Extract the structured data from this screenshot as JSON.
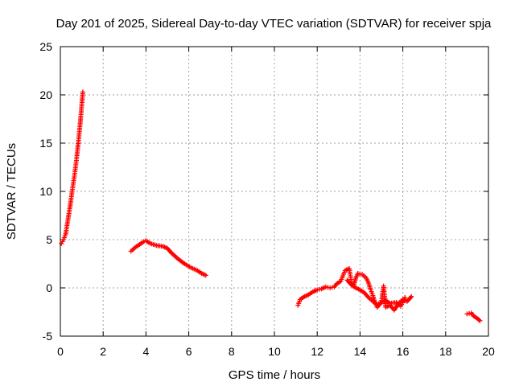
{
  "chart_data": {
    "type": "scatter",
    "title": "Day 201 of 2025, Sidereal Day-to-day VTEC variation (SDTVAR) for receiver spja",
    "xlabel": "GPS time / hours",
    "ylabel": "SDTVAR / TECUs",
    "xlim": [
      0,
      20
    ],
    "ylim": [
      -5,
      25
    ],
    "xticks": [
      "0",
      "2",
      "4",
      "6",
      "8",
      "10",
      "12",
      "14",
      "16",
      "18",
      "20"
    ],
    "yticks": [
      "-5",
      "0",
      "5",
      "10",
      "15",
      "20",
      "25"
    ],
    "grid": true,
    "marker": "+",
    "colors": {
      "series": "#ff0000",
      "grid": "#a0a0a0",
      "axis": "#000000"
    },
    "series": [
      {
        "name": "spja",
        "segments": [
          [
            [
              0.05,
              4.6
            ],
            [
              0.15,
              5.0
            ],
            [
              0.25,
              5.6
            ],
            [
              0.35,
              7.0
            ],
            [
              0.45,
              8.4
            ],
            [
              0.55,
              10.0
            ],
            [
              0.65,
              11.5
            ],
            [
              0.75,
              13.2
            ],
            [
              0.85,
              15.3
            ],
            [
              0.95,
              17.6
            ],
            [
              1.05,
              20.3
            ]
          ],
          [
            [
              3.3,
              3.8
            ],
            [
              3.5,
              4.2
            ],
            [
              3.7,
              4.5
            ],
            [
              3.9,
              4.8
            ],
            [
              4.0,
              4.9
            ],
            [
              4.2,
              4.6
            ],
            [
              4.5,
              4.4
            ],
            [
              4.8,
              4.3
            ],
            [
              5.0,
              4.1
            ],
            [
              5.2,
              3.6
            ],
            [
              5.5,
              3.0
            ],
            [
              5.8,
              2.5
            ],
            [
              6.1,
              2.1
            ],
            [
              6.4,
              1.8
            ],
            [
              6.6,
              1.5
            ],
            [
              6.8,
              1.3
            ]
          ],
          [
            [
              11.1,
              -1.8
            ],
            [
              11.2,
              -1.2
            ],
            [
              11.4,
              -0.9
            ],
            [
              11.6,
              -0.7
            ],
            [
              11.8,
              -0.4
            ],
            [
              12.0,
              -0.2
            ],
            [
              12.2,
              -0.1
            ],
            [
              12.4,
              0.1
            ],
            [
              12.6,
              0.0
            ],
            [
              12.8,
              0.1
            ],
            [
              12.9,
              0.4
            ],
            [
              13.1,
              0.7
            ],
            [
              13.3,
              1.8
            ],
            [
              13.5,
              2.0
            ],
            [
              13.6,
              0.5
            ],
            [
              13.7,
              0.2
            ],
            [
              13.8,
              1.0
            ],
            [
              13.9,
              1.5
            ],
            [
              14.1,
              1.4
            ],
            [
              14.3,
              1.0
            ],
            [
              14.4,
              0.5
            ],
            [
              14.5,
              -0.2
            ],
            [
              14.6,
              -0.8
            ],
            [
              14.7,
              -1.5
            ],
            [
              14.8,
              -2.0
            ],
            [
              15.0,
              -1.5
            ],
            [
              15.1,
              0.2
            ],
            [
              15.2,
              -2.0
            ],
            [
              15.4,
              -1.8
            ],
            [
              15.6,
              -2.3
            ],
            [
              15.8,
              -1.6
            ],
            [
              16.0,
              -1.2
            ],
            [
              16.2,
              -1.4
            ],
            [
              16.4,
              -0.9
            ]
          ],
          [
            [
              13.4,
              0.8
            ],
            [
              13.6,
              0.3
            ],
            [
              13.8,
              0.0
            ],
            [
              14.0,
              -0.2
            ],
            [
              14.2,
              -0.5
            ],
            [
              14.4,
              -1.0
            ],
            [
              14.6,
              -1.4
            ],
            [
              14.8,
              -1.7
            ],
            [
              15.2,
              -1.3
            ],
            [
              15.4,
              -1.6
            ],
            [
              15.7,
              -1.5
            ],
            [
              15.9,
              -1.9
            ],
            [
              16.1,
              -1.0
            ]
          ],
          [
            [
              19.0,
              -2.7
            ],
            [
              19.2,
              -2.6
            ],
            [
              19.3,
              -2.9
            ],
            [
              19.5,
              -3.2
            ],
            [
              19.6,
              -3.4
            ]
          ]
        ]
      }
    ]
  }
}
